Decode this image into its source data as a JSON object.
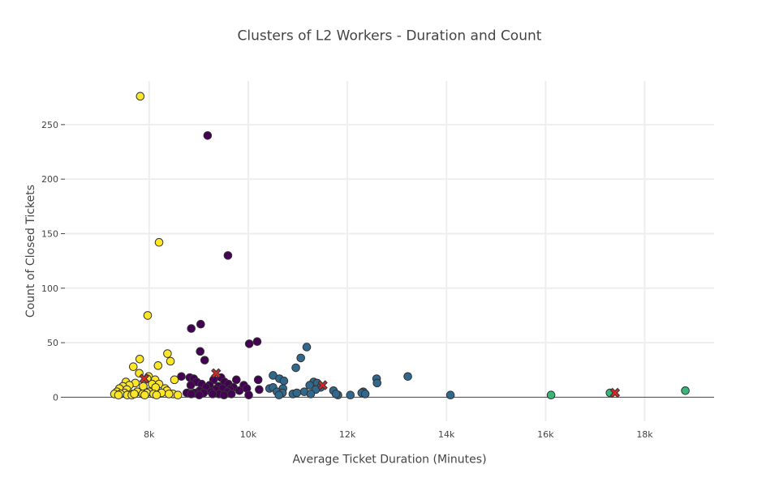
{
  "chart_data": {
    "type": "scatter",
    "title": "Clusters of L2 Workers - Duration and Count",
    "xlabel": "Average Ticket Duration (Minutes)",
    "ylabel": "Count of Closed Tickets",
    "xlim": [
      6300,
      19400
    ],
    "ylim": [
      -22,
      290
    ],
    "xticks": [
      8000,
      10000,
      12000,
      14000,
      16000,
      18000
    ],
    "xtick_labels": [
      "8k",
      "10k",
      "12k",
      "14k",
      "16k",
      "18k"
    ],
    "yticks": [
      0,
      50,
      100,
      150,
      200,
      250
    ],
    "ytick_labels": [
      "0",
      "50",
      "100",
      "150",
      "200",
      "250"
    ],
    "grid": true,
    "legend": "none",
    "series": [
      {
        "color": "#fde725",
        "points": [
          [
            7820,
            276
          ],
          [
            8200,
            142
          ],
          [
            7970,
            75
          ],
          [
            8370,
            40
          ],
          [
            7810,
            35
          ],
          [
            8430,
            33
          ],
          [
            7680,
            28
          ],
          [
            8180,
            29
          ],
          [
            7800,
            22
          ],
          [
            7990,
            19
          ],
          [
            7960,
            17
          ],
          [
            8120,
            16
          ],
          [
            8510,
            16
          ],
          [
            7530,
            14
          ],
          [
            7720,
            13
          ],
          [
            8060,
            12
          ],
          [
            8200,
            12
          ],
          [
            7600,
            11
          ],
          [
            7880,
            10
          ],
          [
            7470,
            10
          ],
          [
            8130,
            9
          ],
          [
            7400,
            8
          ],
          [
            8320,
            8
          ],
          [
            7550,
            7
          ],
          [
            8360,
            6
          ],
          [
            7350,
            5
          ],
          [
            7760,
            5
          ],
          [
            8000,
            5
          ],
          [
            8250,
            4
          ],
          [
            7500,
            4
          ],
          [
            7640,
            3
          ],
          [
            7950,
            4
          ],
          [
            8480,
            3
          ],
          [
            7420,
            3
          ],
          [
            7560,
            2
          ],
          [
            7870,
            3
          ],
          [
            8090,
            3
          ],
          [
            7300,
            3
          ],
          [
            8580,
            2
          ],
          [
            7650,
            2
          ],
          [
            8400,
            3
          ],
          [
            7380,
            2
          ],
          [
            7910,
            2
          ],
          [
            7700,
            3
          ],
          [
            8150,
            2
          ]
        ]
      },
      {
        "color": "#440154",
        "points": [
          [
            9180,
            240
          ],
          [
            9590,
            130
          ],
          [
            8850,
            63
          ],
          [
            9040,
            67
          ],
          [
            10020,
            49
          ],
          [
            10180,
            51
          ],
          [
            9030,
            42
          ],
          [
            9120,
            34
          ],
          [
            8650,
            19
          ],
          [
            8820,
            18
          ],
          [
            9450,
            18
          ],
          [
            8900,
            17
          ],
          [
            9300,
            16
          ],
          [
            9760,
            16
          ],
          [
            10200,
            16
          ],
          [
            8960,
            14
          ],
          [
            9520,
            14
          ],
          [
            9060,
            12
          ],
          [
            9600,
            12
          ],
          [
            8840,
            11
          ],
          [
            9220,
            11
          ],
          [
            9400,
            10
          ],
          [
            9910,
            11
          ],
          [
            9150,
            9
          ],
          [
            9700,
            9
          ],
          [
            9480,
            8
          ],
          [
            9970,
            8
          ],
          [
            9340,
            7
          ],
          [
            9630,
            7
          ],
          [
            9020,
            6
          ],
          [
            10220,
            7
          ],
          [
            9250,
            5
          ],
          [
            8920,
            4
          ],
          [
            9580,
            5
          ],
          [
            9820,
            6
          ],
          [
            8760,
            4
          ],
          [
            9100,
            4
          ],
          [
            9410,
            3
          ],
          [
            8850,
            3
          ],
          [
            9660,
            3
          ],
          [
            9510,
            2
          ],
          [
            10010,
            2
          ],
          [
            9280,
            3
          ],
          [
            9010,
            2
          ]
        ]
      },
      {
        "color": "#31688e",
        "points": [
          [
            11180,
            46
          ],
          [
            11060,
            36
          ],
          [
            10960,
            27
          ],
          [
            10500,
            20
          ],
          [
            13220,
            19
          ],
          [
            10630,
            17
          ],
          [
            12590,
            17
          ],
          [
            10720,
            15
          ],
          [
            11320,
            14
          ],
          [
            11390,
            13
          ],
          [
            12600,
            13
          ],
          [
            11240,
            11
          ],
          [
            10430,
            8
          ],
          [
            10500,
            9
          ],
          [
            11460,
            9
          ],
          [
            10700,
            8
          ],
          [
            11360,
            7
          ],
          [
            11720,
            6
          ],
          [
            12320,
            5
          ],
          [
            10580,
            5
          ],
          [
            11130,
            5
          ],
          [
            12290,
            4
          ],
          [
            10690,
            4
          ],
          [
            10900,
            3
          ],
          [
            11260,
            3
          ],
          [
            12360,
            3
          ],
          [
            10980,
            4
          ],
          [
            10620,
            2
          ],
          [
            11810,
            2
          ],
          [
            12060,
            2
          ],
          [
            14080,
            2
          ],
          [
            11770,
            3
          ]
        ]
      },
      {
        "color": "#35b779",
        "points": [
          [
            16110,
            2
          ],
          [
            17300,
            4
          ],
          [
            18820,
            6
          ]
        ]
      }
    ],
    "centroids": {
      "color": "#d62728",
      "points": [
        [
          7900,
          17
        ],
        [
          9350,
          22
        ],
        [
          11500,
          11
        ],
        [
          17400,
          4
        ]
      ]
    }
  }
}
